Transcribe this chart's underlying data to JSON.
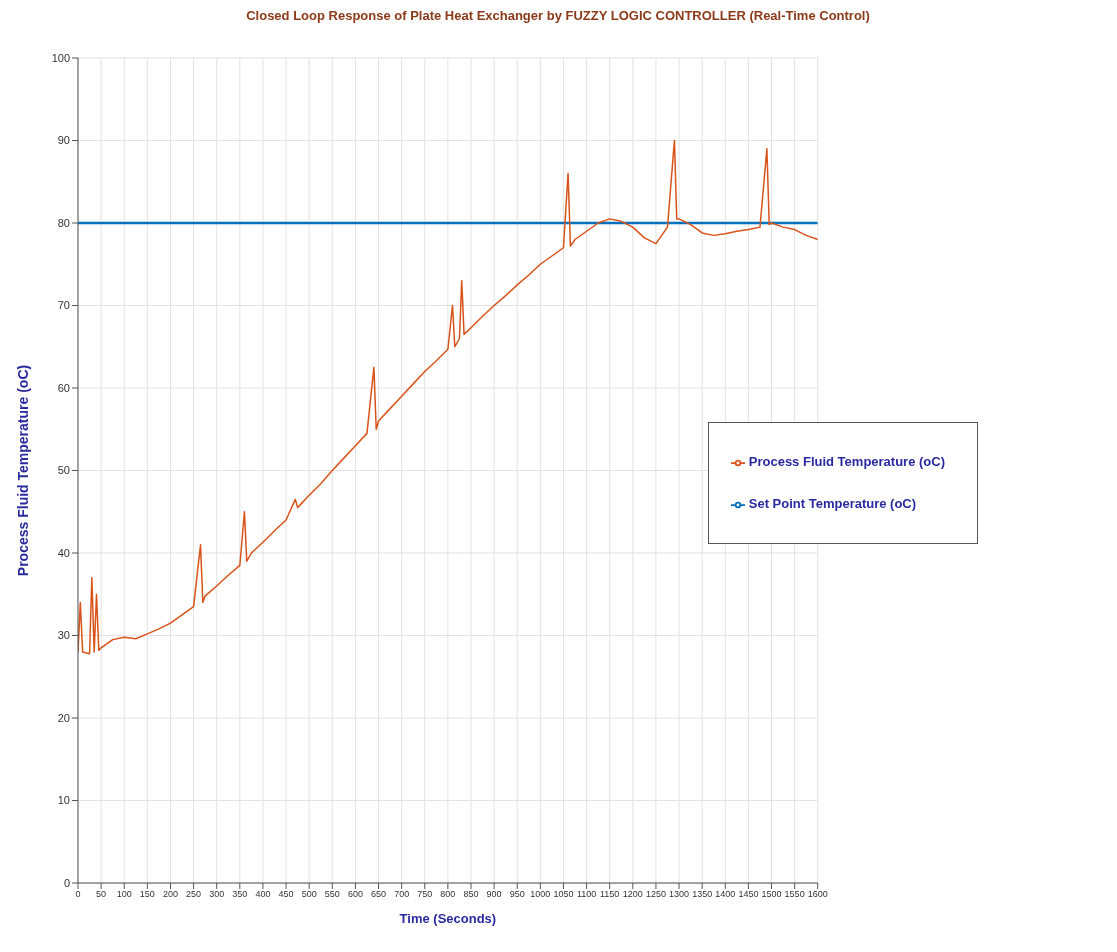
{
  "chart_data": {
    "type": "line",
    "title": "Closed Loop Response of Plate Heat Exchanger by FUZZY LOGIC CONTROLLER (Real-Time Control)",
    "xlabel": "Time (Seconds)",
    "ylabel": "Process Fluid Temperature (oC)",
    "xlim": [
      0,
      1600
    ],
    "xticks": [
      0,
      50,
      100,
      150,
      200,
      250,
      300,
      350,
      400,
      450,
      500,
      550,
      600,
      650,
      700,
      750,
      800,
      850,
      900,
      950,
      1000,
      1050,
      1100,
      1150,
      1200,
      1250,
      1300,
      1350,
      1400,
      1450,
      1500,
      1550,
      1600
    ],
    "ylim": [
      0,
      100
    ],
    "yticks": [
      0,
      10,
      20,
      30,
      40,
      50,
      60,
      70,
      80,
      90,
      100
    ],
    "grid": true,
    "legend": "right",
    "marker": "none",
    "line_style": "solid",
    "series": [
      {
        "name": "Set Point Temperature (oC)",
        "color": "#0072bd",
        "x": [
          0,
          1600
        ],
        "values": [
          80,
          80
        ]
      },
      {
        "name": "Process Fluid Temperature (oC)",
        "color": "#d95319",
        "x": [
          0,
          5,
          10,
          25,
          30,
          35,
          40,
          45,
          50,
          75,
          100,
          125,
          150,
          175,
          200,
          225,
          250,
          265,
          270,
          275,
          300,
          325,
          350,
          360,
          365,
          375,
          400,
          425,
          450,
          470,
          475,
          500,
          525,
          550,
          575,
          600,
          625,
          640,
          645,
          650,
          675,
          700,
          725,
          750,
          775,
          800,
          810,
          815,
          825,
          830,
          835,
          850,
          875,
          900,
          925,
          950,
          975,
          1000,
          1025,
          1050,
          1060,
          1065,
          1075,
          1100,
          1125,
          1150,
          1175,
          1200,
          1225,
          1250,
          1275,
          1290,
          1295,
          1300,
          1325,
          1350,
          1375,
          1400,
          1425,
          1450,
          1475,
          1490,
          1495,
          1500,
          1525,
          1550,
          1575,
          1600
        ],
        "values": [
          28,
          34,
          28,
          27.8,
          37,
          28,
          35,
          28.2,
          28.5,
          29.5,
          29.8,
          29.6,
          30.2,
          30.8,
          31.5,
          32.5,
          33.5,
          41,
          34,
          34.8,
          36,
          37.3,
          38.5,
          45,
          39,
          40,
          41.3,
          42.7,
          44,
          46.5,
          45.5,
          47,
          48.4,
          50,
          51.5,
          53,
          54.5,
          62.5,
          55,
          56,
          57.5,
          59,
          60.5,
          62,
          63.3,
          64.7,
          70,
          65,
          66,
          73,
          66.5,
          67.3,
          68.7,
          70,
          71.2,
          72.5,
          73.7,
          75,
          76,
          77,
          86,
          77.2,
          78,
          79,
          80,
          80.5,
          80.2,
          79.5,
          78.2,
          77.5,
          79.5,
          90,
          80.5,
          80.5,
          79.8,
          78.8,
          78.5,
          78.7,
          79,
          79.2,
          79.5,
          89,
          79.8,
          80,
          79.5,
          79.2,
          78.5,
          78
        ]
      }
    ]
  }
}
